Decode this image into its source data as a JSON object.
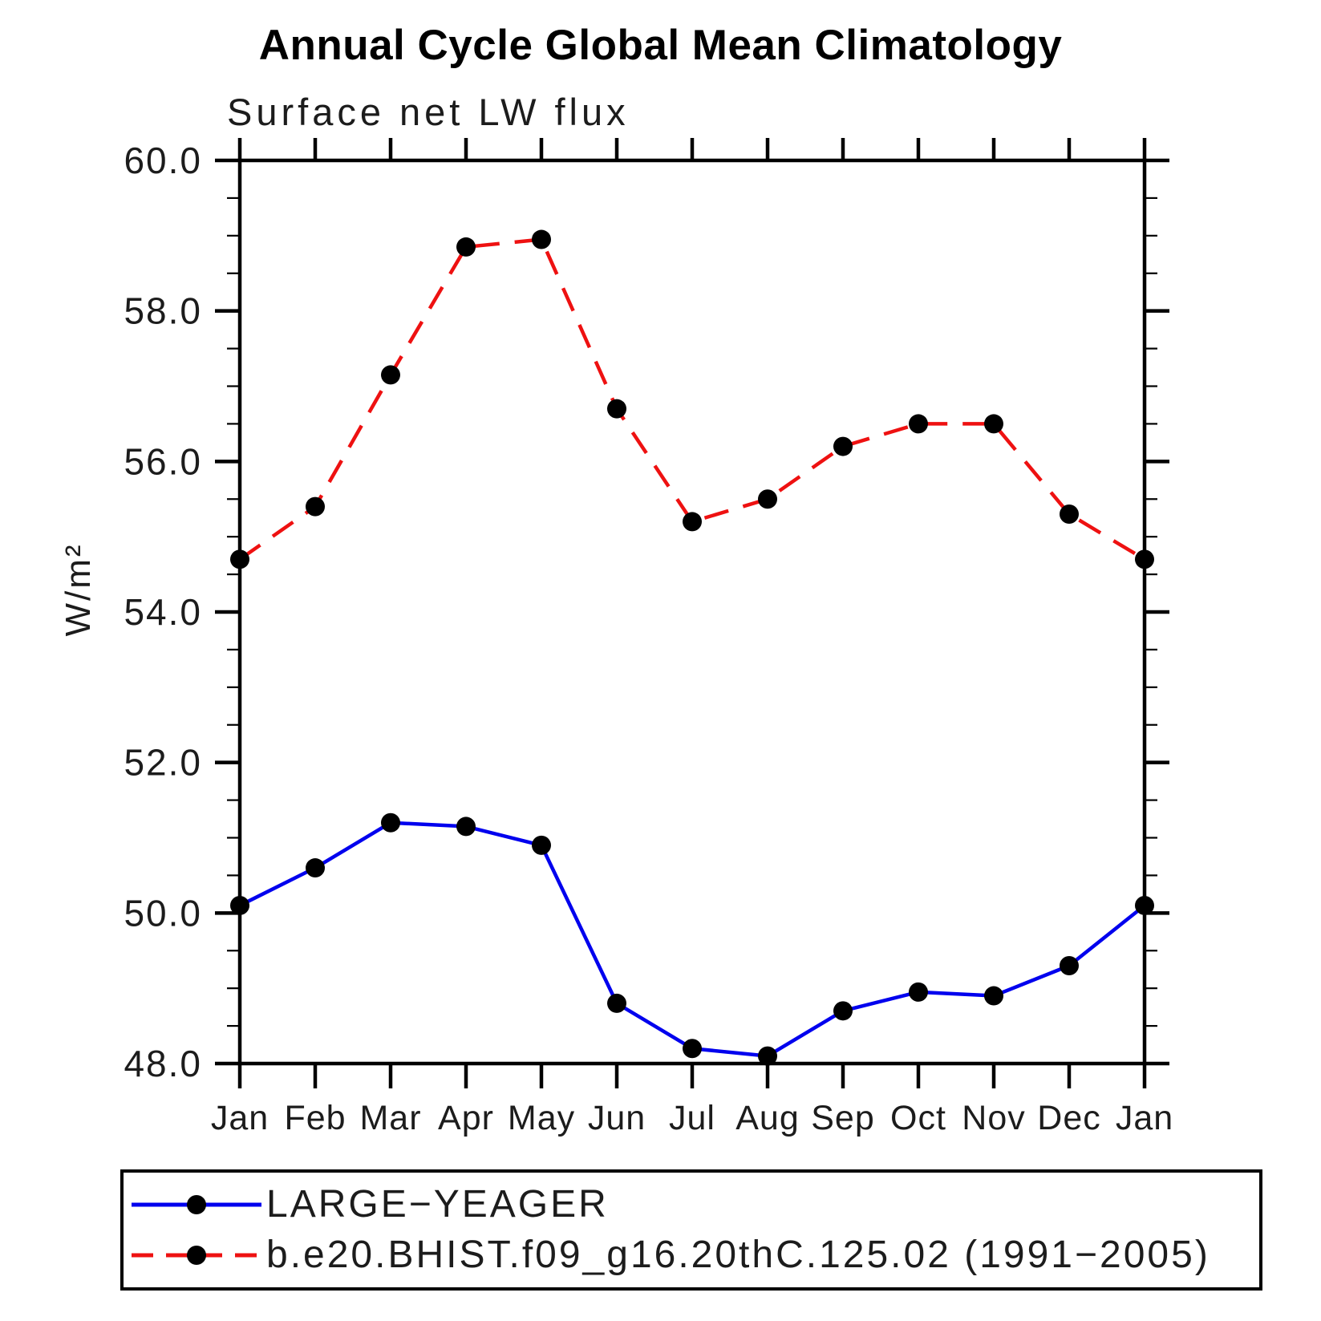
{
  "figure": {
    "title": "Annual Cycle Global Mean Climatology",
    "subtitle": "Surface net LW flux",
    "ylabel": "W/m²"
  },
  "chart_data": {
    "type": "line",
    "title": "Annual Cycle Global Mean Climatology",
    "subtitle": "Surface net LW flux",
    "ylabel": "W/m²",
    "ylim": [
      48.0,
      60.0
    ],
    "ytick_major_step": 2.0,
    "ytick_minor_step": 0.5,
    "ytick_labels": [
      "48.0",
      "50.0",
      "52.0",
      "54.0",
      "56.0",
      "58.0",
      "60.0"
    ],
    "x_categories": [
      "Jan",
      "Feb",
      "Mar",
      "Apr",
      "May",
      "Jun",
      "Jul",
      "Aug",
      "Sep",
      "Oct",
      "Nov",
      "Dec",
      "Jan"
    ],
    "grid": false,
    "legend_position": "bottom-left",
    "series": [
      {
        "name": "LARGE−YEAGER",
        "color": "#0000ee",
        "line_style": "solid",
        "marker": "filled-circle",
        "marker_color": "#000000",
        "values": [
          50.1,
          50.6,
          51.2,
          51.15,
          50.9,
          48.8,
          48.2,
          48.1,
          48.7,
          48.95,
          48.9,
          49.3,
          50.1
        ]
      },
      {
        "name": "b.e20.BHIST.f09_g16.20thC.125.02 (1991−2005)",
        "color": "#ee1111",
        "line_style": "dashed",
        "marker": "filled-circle",
        "marker_color": "#000000",
        "values": [
          54.7,
          55.4,
          57.15,
          58.85,
          58.95,
          56.7,
          55.2,
          55.5,
          56.2,
          56.5,
          56.5,
          55.3,
          54.7
        ]
      }
    ]
  }
}
